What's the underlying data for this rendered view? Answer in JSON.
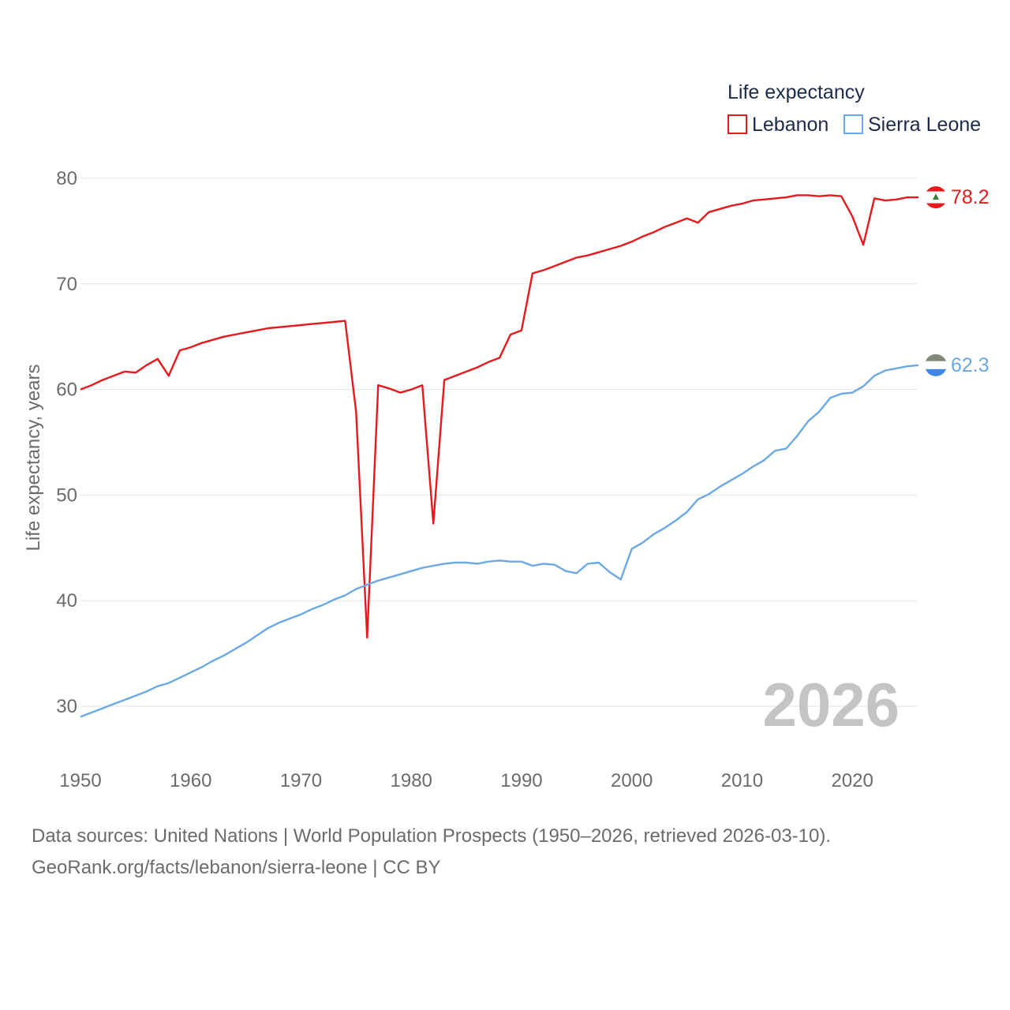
{
  "chart_data": {
    "type": "line",
    "title": "",
    "xlabel": "",
    "ylabel": "Life expectancy, years",
    "xlim": [
      1950,
      2026
    ],
    "ylim": [
      25,
      82
    ],
    "x_ticks": [
      "1950",
      "1960",
      "1970",
      "1980",
      "1990",
      "2000",
      "2010",
      "2020"
    ],
    "y_ticks": [
      "30",
      "40",
      "50",
      "60",
      "70",
      "80"
    ],
    "legend_title": "Life expectancy",
    "legend_position": "top-right",
    "year_label": "2026",
    "x": [
      1950,
      1951,
      1952,
      1953,
      1954,
      1955,
      1956,
      1957,
      1958,
      1959,
      1960,
      1961,
      1962,
      1963,
      1964,
      1965,
      1966,
      1967,
      1968,
      1969,
      1970,
      1971,
      1972,
      1973,
      1974,
      1975,
      1976,
      1977,
      1978,
      1979,
      1980,
      1981,
      1982,
      1983,
      1984,
      1985,
      1986,
      1987,
      1988,
      1989,
      1990,
      1991,
      1992,
      1993,
      1994,
      1995,
      1996,
      1997,
      1998,
      1999,
      2000,
      2001,
      2002,
      2003,
      2004,
      2005,
      2006,
      2007,
      2008,
      2009,
      2010,
      2011,
      2012,
      2013,
      2014,
      2015,
      2016,
      2017,
      2018,
      2019,
      2020,
      2021,
      2022,
      2023,
      2024,
      2025,
      2026
    ],
    "series": [
      {
        "name": "Lebanon",
        "color": "#e8191c",
        "end_label": "78.2",
        "values": [
          60.0,
          60.4,
          60.9,
          61.3,
          61.7,
          61.6,
          62.3,
          62.9,
          61.3,
          63.7,
          64.0,
          64.4,
          64.7,
          65.0,
          65.2,
          65.4,
          65.6,
          65.8,
          65.9,
          66.0,
          66.1,
          66.2,
          66.3,
          66.4,
          66.5,
          57.9,
          36.5,
          60.4,
          60.1,
          59.7,
          60.0,
          60.4,
          47.3,
          60.9,
          61.3,
          61.7,
          62.1,
          62.6,
          63.0,
          65.2,
          65.6,
          71.0,
          71.3,
          71.7,
          72.1,
          72.5,
          72.7,
          73.0,
          73.3,
          73.6,
          74.0,
          74.5,
          74.9,
          75.4,
          75.8,
          76.2,
          75.8,
          76.8,
          77.1,
          77.4,
          77.6,
          77.9,
          78.0,
          78.1,
          78.2,
          78.4,
          78.4,
          78.3,
          78.4,
          78.3,
          76.4,
          73.7,
          78.1,
          77.9,
          78.0,
          78.2,
          78.2
        ]
      },
      {
        "name": "Sierra Leone",
        "color": "#6aa8e6",
        "end_label": "62.3",
        "values": [
          29.0,
          29.4,
          29.8,
          30.2,
          30.6,
          31.0,
          31.4,
          31.9,
          32.2,
          32.7,
          33.2,
          33.7,
          34.3,
          34.8,
          35.4,
          36.0,
          36.7,
          37.4,
          37.9,
          38.3,
          38.7,
          39.2,
          39.6,
          40.1,
          40.5,
          41.1,
          41.5,
          41.9,
          42.2,
          42.5,
          42.8,
          43.1,
          43.3,
          43.5,
          43.6,
          43.6,
          43.5,
          43.7,
          43.8,
          43.7,
          43.7,
          43.3,
          43.5,
          43.4,
          42.8,
          42.6,
          43.5,
          43.6,
          42.7,
          42.0,
          44.9,
          45.5,
          46.3,
          46.9,
          47.6,
          48.4,
          49.6,
          50.1,
          50.8,
          51.4,
          52.0,
          52.7,
          53.3,
          54.2,
          54.4,
          55.6,
          57.0,
          57.9,
          59.2,
          59.6,
          59.7,
          60.3,
          61.3,
          61.8,
          62.0,
          62.2,
          62.3
        ]
      }
    ]
  },
  "footer": {
    "line1": "Data sources: United Nations | World Population Prospects (1950–2026, retrieved 2026-03-10).",
    "line2": "GeoRank.org/facts/lebanon/sierra-leone | CC BY"
  }
}
